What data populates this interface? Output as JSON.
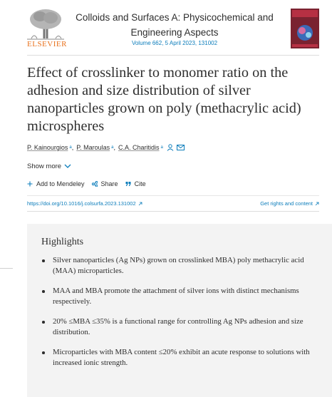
{
  "publisher": "ELSEVIER",
  "journal": {
    "name": "Colloids and Surfaces A: Physicochemical and Engineering Aspects",
    "issue": "Volume 662, 5 April 2023, 131002"
  },
  "article": {
    "title": "Effect of crosslinker to monomer ratio on the adhesion and size distribution of silver nanoparticles grown on poly (methacrylic acid) microspheres",
    "authors": [
      {
        "name": "P. Kainourgios",
        "affiliation": "a"
      },
      {
        "name": "P. Maroulas",
        "affiliation": "a"
      },
      {
        "name": "C.A. Charitidis",
        "affiliation": "a"
      }
    ],
    "separator": ",",
    "show_more": "Show more",
    "actions": [
      "Add to Mendeley",
      "Share",
      "Cite"
    ],
    "doi": "https://doi.org/10.1016/j.colsurfa.2023.131002",
    "rights": "Get rights and content"
  },
  "highlights": {
    "heading": "Highlights",
    "items": [
      "Silver nanoparticles (Ag NPs) grown on crosslinked MBA) poly methacrylic acid (MAA) microparticles.",
      "MAA and MBA promote the attachment of silver ions with distinct mechanisms respectively.",
      "20% ≤MBA ≤35% is a functional range for controlling Ag NPs adhesion and size distribution.",
      "Microparticles with MBA content ≤20% exhibit an acute response to solutions with increased ionic strength."
    ]
  }
}
